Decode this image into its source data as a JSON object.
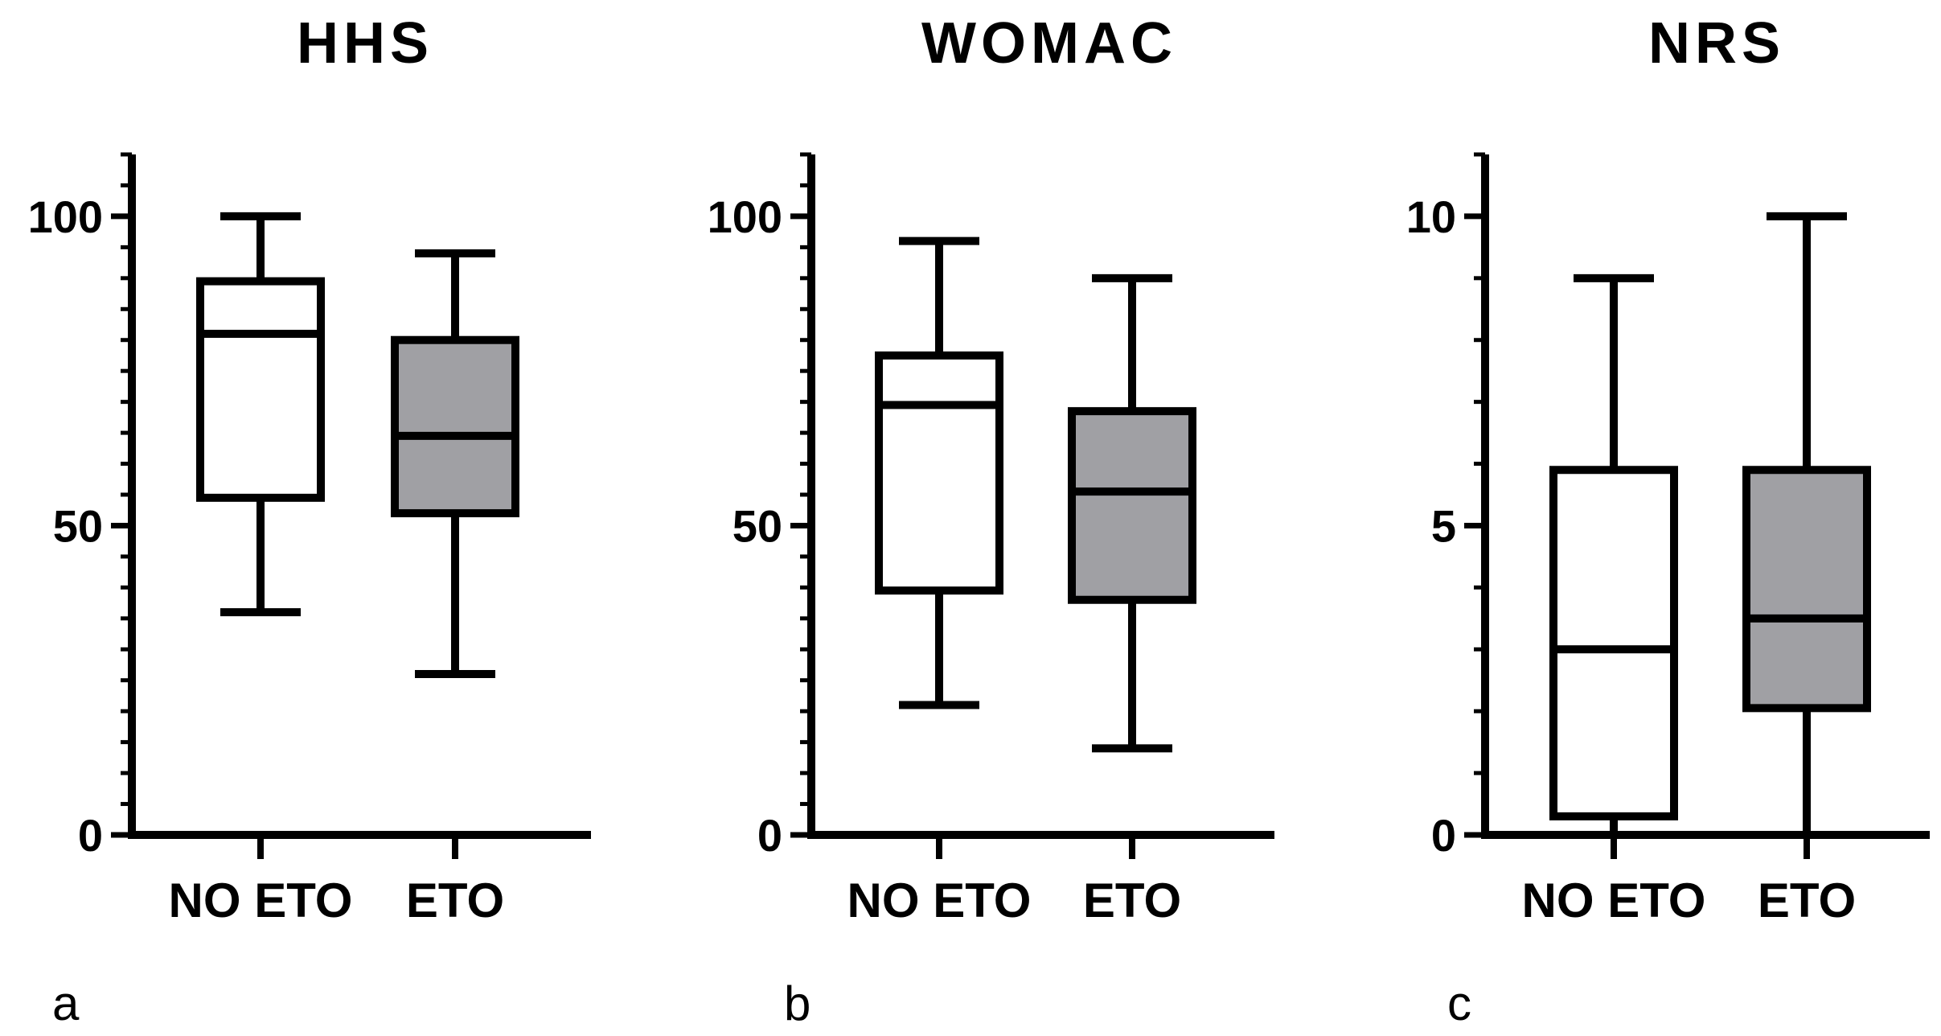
{
  "chart_data": [
    {
      "type": "boxplot",
      "panel_label": "a",
      "title": "HHS",
      "categories": [
        "NO ETO",
        "ETO"
      ],
      "ylim": [
        0,
        110
      ],
      "yticks": [
        0,
        50,
        100
      ],
      "ytick_labels": [
        "0",
        "50",
        "100"
      ],
      "minor_tick_step": 5,
      "boxes": [
        {
          "category": "NO ETO",
          "min": 36,
          "q1": 54.5,
          "median": 81,
          "q3": 89.5,
          "max": 100,
          "fill": "#ffffff"
        },
        {
          "category": "ETO",
          "min": 26,
          "q1": 52,
          "median": 64.5,
          "q3": 80,
          "max": 94,
          "fill": "#a0a0a4"
        }
      ]
    },
    {
      "type": "boxplot",
      "panel_label": "b",
      "title": "WOMAC",
      "categories": [
        "NO ETO",
        "ETO"
      ],
      "ylim": [
        0,
        110
      ],
      "yticks": [
        0,
        50,
        100
      ],
      "ytick_labels": [
        "0",
        "50",
        "100"
      ],
      "minor_tick_step": 5,
      "boxes": [
        {
          "category": "NO ETO",
          "min": 21,
          "q1": 39.5,
          "median": 69.5,
          "q3": 77.5,
          "max": 96,
          "fill": "#ffffff"
        },
        {
          "category": "ETO",
          "min": 14,
          "q1": 38,
          "median": 55.5,
          "q3": 68.5,
          "max": 90,
          "fill": "#a0a0a4"
        }
      ]
    },
    {
      "type": "boxplot",
      "panel_label": "c",
      "title": "NRS",
      "categories": [
        "NO ETO",
        "ETO"
      ],
      "ylim": [
        0,
        11
      ],
      "yticks": [
        0,
        5,
        10
      ],
      "ytick_labels": [
        "0",
        "5",
        "10"
      ],
      "minor_tick_step": 1,
      "boxes": [
        {
          "category": "NO ETO",
          "min": 0,
          "q1": 0.3,
          "median": 3,
          "q3": 5.9,
          "max": 9,
          "fill": "#ffffff"
        },
        {
          "category": "ETO",
          "min": 0,
          "q1": 2.05,
          "median": 3.5,
          "q3": 5.9,
          "max": 10,
          "fill": "#a0a0a4"
        }
      ]
    }
  ]
}
